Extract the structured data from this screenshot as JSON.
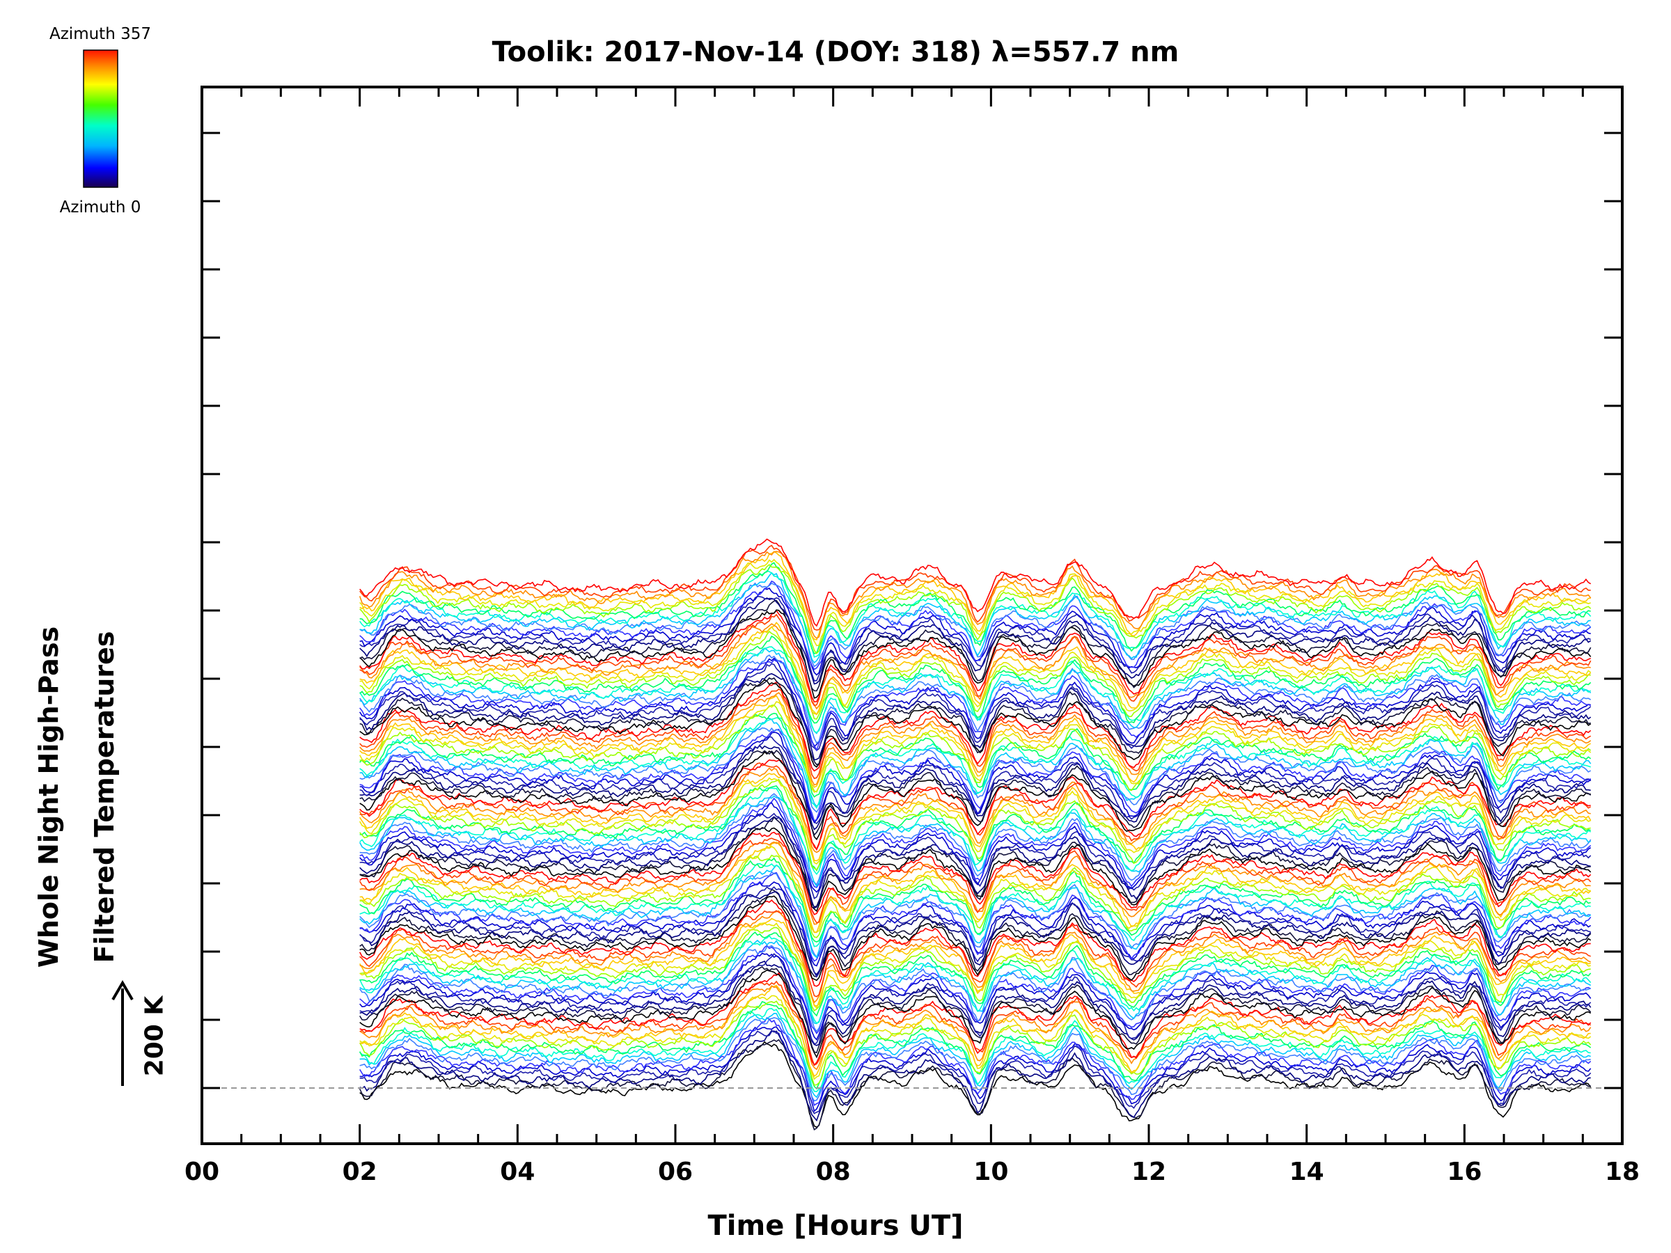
{
  "chart_data": {
    "type": "line",
    "title": "Toolik: 2017-Nov-14 (DOY: 318) λ=557.7 nm",
    "xlabel": "Time [Hours UT]",
    "ylabel_lines": [
      "Whole Night High-Pass",
      "Filtered Temperatures"
    ],
    "x_ticks": [
      "00",
      "02",
      "04",
      "06",
      "08",
      "10",
      "12",
      "14",
      "16",
      "18"
    ],
    "xlim": [
      0,
      18
    ],
    "data_xrange": [
      2.0,
      17.6
    ],
    "n_traces": 112,
    "trace_offset_K": 15,
    "scale_bar_label": "200 K",
    "scale_bar_K": 200,
    "baseline": "dashed",
    "colorbar": {
      "top_label": "Azimuth 357",
      "bottom_label": "Azimuth 0"
    },
    "features": [
      {
        "t": 2.15,
        "amp": -1.4,
        "w": 0.12
      },
      {
        "t": 2.55,
        "amp": 1.8,
        "w": 0.25
      },
      {
        "t": 3.3,
        "amp": 0.3,
        "w": 0.3
      },
      {
        "t": 5.0,
        "amp": -0.4,
        "w": 0.3
      },
      {
        "t": 6.95,
        "amp": 3.2,
        "w": 0.2
      },
      {
        "t": 7.3,
        "amp": 3.3,
        "w": 0.15
      },
      {
        "t": 7.78,
        "amp": -4.0,
        "w": 0.09
      },
      {
        "t": 8.15,
        "amp": -2.4,
        "w": 0.1
      },
      {
        "t": 8.6,
        "amp": 0.8,
        "w": 0.2
      },
      {
        "t": 9.2,
        "amp": 1.6,
        "w": 0.18
      },
      {
        "t": 9.85,
        "amp": -3.2,
        "w": 0.1
      },
      {
        "t": 10.2,
        "amp": 1.2,
        "w": 0.22
      },
      {
        "t": 11.05,
        "amp": 2.4,
        "w": 0.12
      },
      {
        "t": 11.8,
        "amp": -3.2,
        "w": 0.16
      },
      {
        "t": 12.8,
        "amp": 1.8,
        "w": 0.25
      },
      {
        "t": 13.5,
        "amp": 0.8,
        "w": 0.25
      },
      {
        "t": 14.45,
        "amp": 1.0,
        "w": 0.1
      },
      {
        "t": 15.6,
        "amp": 2.2,
        "w": 0.25
      },
      {
        "t": 16.15,
        "amp": 1.8,
        "w": 0.1
      },
      {
        "t": 16.45,
        "amp": -2.6,
        "w": 0.12
      }
    ],
    "colors": {
      "cycle": [
        "#000000",
        "#14143c",
        "#000080",
        "#1e1eaa",
        "#0000cd",
        "#3232ff",
        "#4080ff",
        "#00c8ff",
        "#00ffd2",
        "#00ff64",
        "#9bff00",
        "#e6e600",
        "#ffc800",
        "#ff8c00",
        "#ff4000",
        "#ff0000"
      ],
      "baseline": "#999999"
    }
  }
}
